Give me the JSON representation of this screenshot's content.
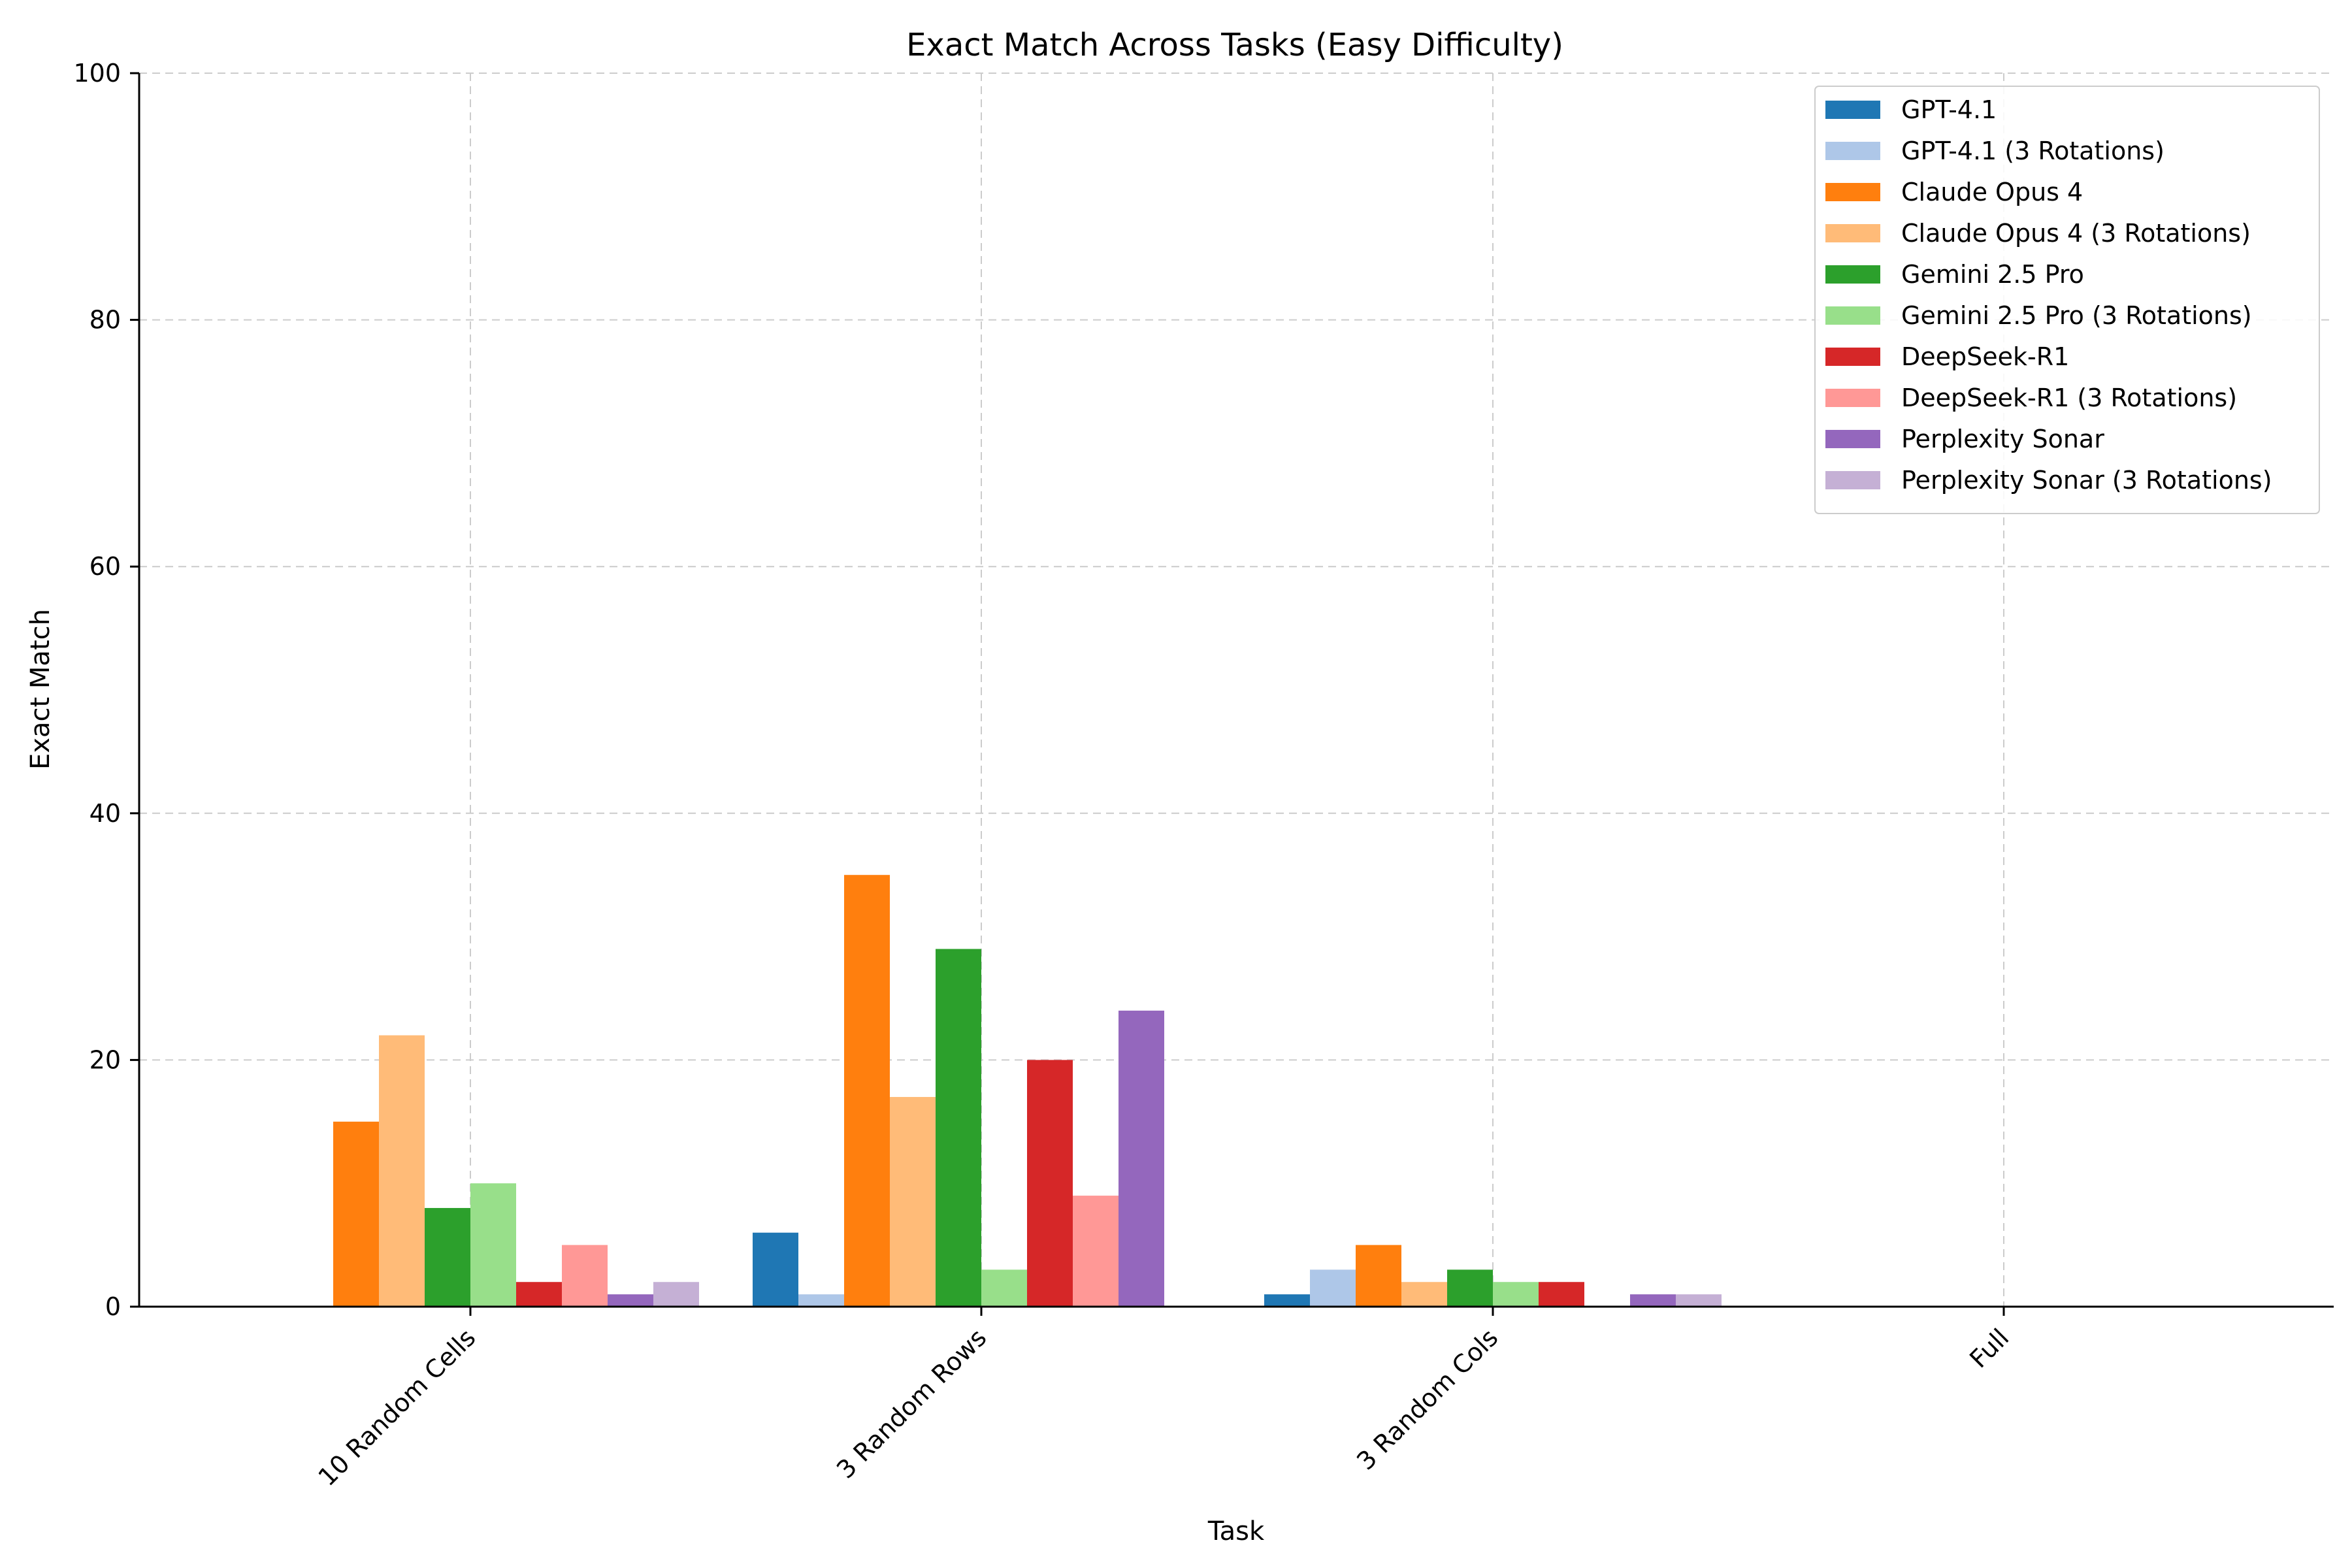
{
  "chart_data": {
    "type": "bar",
    "title": "Exact Match Across Tasks (Easy Difficulty)",
    "xlabel": "Task",
    "ylabel": "Exact Match",
    "ylim": [
      0,
      100
    ],
    "yticks": [
      0,
      20,
      40,
      60,
      80,
      100
    ],
    "grid": true,
    "legend_position": "top-right",
    "categories": [
      "10 Random Cells",
      "3 Random Rows",
      "3 Random Cols",
      "Full"
    ],
    "series": [
      {
        "name": "GPT-4.1",
        "color": "#1f77b4",
        "values": [
          0,
          6,
          1,
          0
        ]
      },
      {
        "name": "GPT-4.1 (3 Rotations)",
        "color": "#aec7e8",
        "values": [
          0,
          1,
          3,
          0
        ]
      },
      {
        "name": "Claude Opus 4",
        "color": "#ff7f0e",
        "values": [
          15,
          35,
          5,
          0
        ]
      },
      {
        "name": "Claude Opus 4 (3 Rotations)",
        "color": "#ffbb78",
        "values": [
          22,
          17,
          2,
          0
        ]
      },
      {
        "name": "Gemini 2.5 Pro",
        "color": "#2ca02c",
        "values": [
          8,
          29,
          3,
          0
        ]
      },
      {
        "name": "Gemini 2.5 Pro (3 Rotations)",
        "color": "#98df8a",
        "values": [
          10,
          3,
          2,
          0
        ]
      },
      {
        "name": "DeepSeek-R1",
        "color": "#d62728",
        "values": [
          2,
          20,
          2,
          0
        ]
      },
      {
        "name": "DeepSeek-R1 (3 Rotations)",
        "color": "#ff9896",
        "values": [
          5,
          9,
          0,
          0
        ]
      },
      {
        "name": "Perplexity Sonar",
        "color": "#9467bd",
        "values": [
          1,
          24,
          1,
          0
        ]
      },
      {
        "name": "Perplexity Sonar (3 Rotations)",
        "color": "#c5b0d5",
        "values": [
          2,
          0,
          1,
          0
        ]
      }
    ]
  }
}
